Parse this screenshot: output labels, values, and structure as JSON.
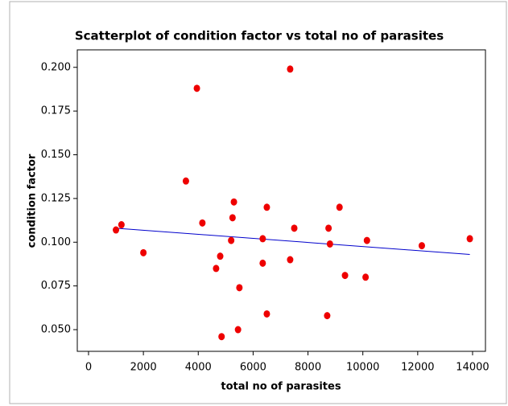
{
  "chart_data": {
    "type": "scatter",
    "title": "Scatterplot of condition factor vs total no of  parasites",
    "x_label": "total no of  parasites",
    "y_label": "condition factor",
    "x": [
      1000,
      1200,
      2000,
      3550,
      3950,
      4150,
      4650,
      4800,
      4850,
      5200,
      5250,
      5300,
      5450,
      5500,
      6350,
      6350,
      6500,
      6500,
      7350,
      7350,
      7500,
      8700,
      8750,
      8800,
      9150,
      9350,
      10150,
      10100,
      12150,
      13900
    ],
    "values": [
      0.107,
      0.11,
      0.094,
      0.135,
      0.188,
      0.111,
      0.085,
      0.092,
      0.046,
      0.101,
      0.114,
      0.123,
      0.05,
      0.074,
      0.102,
      0.088,
      0.059,
      0.12,
      0.199,
      0.09,
      0.108,
      0.058,
      0.108,
      0.099,
      0.12,
      0.081,
      0.101,
      0.08,
      0.098,
      0.102
    ],
    "color": "#ee0000",
    "fit_line": {
      "x": [
        1000,
        13900
      ],
      "values": [
        0.108,
        0.093
      ],
      "color": "#0000cc"
    },
    "xlim": [
      -410,
      14470
    ],
    "ylim": [
      0.0376,
      0.21
    ],
    "xticks": [
      0,
      2000,
      4000,
      6000,
      8000,
      10000,
      12000,
      14000
    ],
    "yticks": [
      {
        "value": 0.05,
        "label": "0.050"
      },
      0.075,
      {
        "value": 0.1,
        "label": "0.100"
      },
      0.125,
      {
        "value": 0.15,
        "label": "0.150"
      },
      0.175,
      {
        "value": 0.2,
        "label": "0.200"
      }
    ],
    "grid": false
  }
}
